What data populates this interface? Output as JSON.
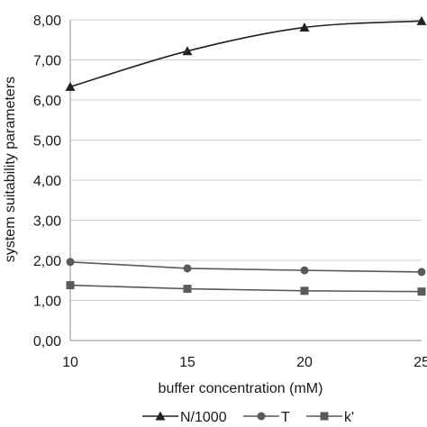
{
  "chart_data": {
    "type": "line",
    "title": "",
    "xlabel": "buffer concentration (mM)",
    "ylabel": "system suitability parameters",
    "x": [
      10,
      15,
      20,
      25
    ],
    "x_tick_labels": [
      "10",
      "15",
      "20",
      "25"
    ],
    "xlim": [
      10,
      25
    ],
    "ylim": [
      0,
      8
    ],
    "y_ticks": [
      0,
      1,
      2,
      3,
      4,
      5,
      6,
      7,
      8
    ],
    "y_tick_labels": [
      "0,00",
      "1,00",
      "2,00",
      "3,00",
      "4,00",
      "5,00",
      "6,00",
      "7,00",
      "8,00"
    ],
    "grid": "horizontal",
    "legend_position": "bottom",
    "series": [
      {
        "name": "N/1000",
        "marker": "triangle",
        "smooth": true,
        "color": "#222222",
        "values": [
          6.33,
          7.22,
          7.81,
          7.97
        ]
      },
      {
        "name": "T",
        "marker": "circle",
        "smooth": false,
        "color": "#5a5a5a",
        "values": [
          1.96,
          1.8,
          1.75,
          1.71
        ]
      },
      {
        "name": "k'",
        "marker": "square",
        "smooth": false,
        "color": "#5a5a5a",
        "values": [
          1.38,
          1.29,
          1.24,
          1.22
        ]
      }
    ]
  }
}
